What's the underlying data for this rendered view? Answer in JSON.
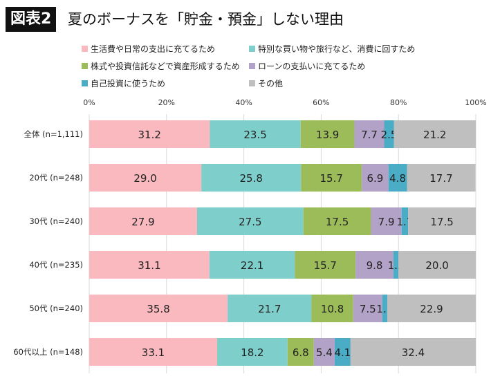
{
  "title": {
    "badge": "図表2",
    "text": "夏のボーナスを「貯金・預金」しない理由"
  },
  "chart_data": {
    "type": "bar",
    "orientation": "horizontal",
    "stacked": true,
    "xlim": [
      0,
      100
    ],
    "x_ticks": [
      "0%",
      "20%",
      "40%",
      "60%",
      "80%",
      "100%"
    ],
    "grid": true,
    "legend_position": "top",
    "categories": [
      "全体 (n=1,111)",
      "20代 (n=248)",
      "30代 (n=240)",
      "40代 (n=235)",
      "50代 (n=240)",
      "60代以上 (n=148)"
    ],
    "series": [
      {
        "name": "生活費や日常の支出に充てるため",
        "color": "#f9b9bf",
        "values": [
          31.2,
          29.0,
          27.9,
          31.1,
          35.8,
          33.1
        ]
      },
      {
        "name": "特別な買い物や旅行など、消費に回すため",
        "color": "#7ecfcc",
        "values": [
          23.5,
          25.8,
          27.5,
          22.1,
          21.7,
          18.2
        ]
      },
      {
        "name": "株式や投資信託などで資産形成するため",
        "color": "#9cbb59",
        "values": [
          13.9,
          15.7,
          17.5,
          15.7,
          10.8,
          6.8
        ]
      },
      {
        "name": "ローンの支払いに充てるため",
        "color": "#b3a2c7",
        "values": [
          7.7,
          6.9,
          7.9,
          9.8,
          7.5,
          5.4
        ]
      },
      {
        "name": "自己投資に使うため",
        "color": "#4bacc6",
        "values": [
          2.5,
          4.8,
          1.7,
          1.3,
          1.3,
          4.1
        ]
      },
      {
        "name": "その他",
        "color": "#bfbfbf",
        "values": [
          21.2,
          17.7,
          17.5,
          20.0,
          22.9,
          32.4
        ]
      }
    ]
  }
}
